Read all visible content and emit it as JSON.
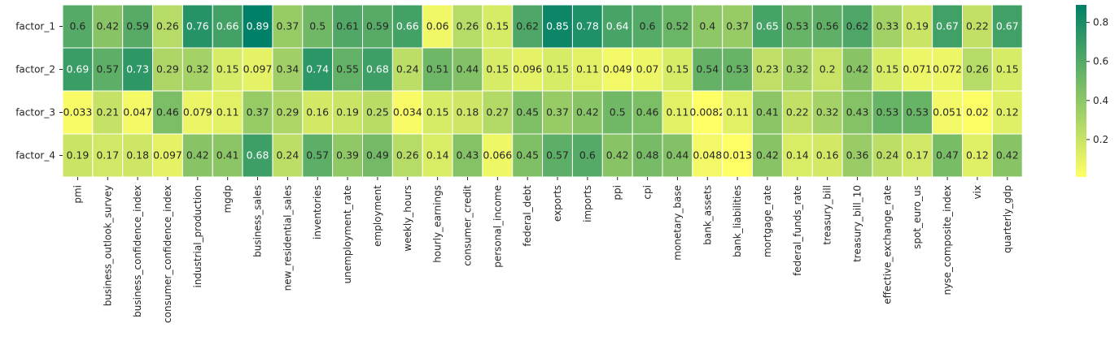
{
  "chart_data": {
    "type": "heatmap",
    "rows": [
      "factor_1",
      "factor_2",
      "factor_3",
      "factor_4"
    ],
    "columns": [
      "pmi",
      "business_outlook_survey",
      "business_confidence_index",
      "consumer_confidence_index",
      "industrial_production",
      "mgdp",
      "business_sales",
      "new_residential_sales",
      "inventories",
      "unemployment_rate",
      "employment",
      "weekly_hours",
      "hourly_earnings",
      "consumer_credit",
      "personal_income",
      "federal_debt",
      "exports",
      "imports",
      "ppi",
      "cpi",
      "monetary_base",
      "bank_assets",
      "bank_liabilities",
      "mortgage_rate",
      "federal_funds_rate",
      "treasury_bill",
      "treasury_bill_10",
      "effective_exchange_rate",
      "spot_euro_us",
      "nyse_composite_index",
      "vix",
      "quarterly_gdp"
    ],
    "values": [
      [
        0.6,
        0.42,
        0.59,
        0.26,
        0.76,
        0.66,
        0.89,
        0.37,
        0.5,
        0.61,
        0.59,
        0.66,
        0.06,
        0.26,
        0.15,
        0.62,
        0.85,
        0.78,
        0.64,
        0.6,
        0.52,
        0.4,
        0.37,
        0.65,
        0.53,
        0.56,
        0.62,
        0.33,
        0.19,
        0.67,
        0.22,
        0.67
      ],
      [
        0.69,
        0.57,
        0.73,
        0.29,
        0.32,
        0.15,
        0.097,
        0.34,
        0.74,
        0.55,
        0.68,
        0.24,
        0.51,
        0.44,
        0.15,
        0.096,
        0.15,
        0.11,
        0.049,
        0.07,
        0.15,
        0.54,
        0.53,
        0.23,
        0.32,
        0.2,
        0.42,
        0.15,
        0.071,
        0.072,
        0.26,
        0.15
      ],
      [
        0.033,
        0.21,
        0.047,
        0.46,
        0.079,
        0.11,
        0.37,
        0.29,
        0.16,
        0.19,
        0.25,
        0.034,
        0.15,
        0.18,
        0.27,
        0.45,
        0.37,
        0.42,
        0.5,
        0.46,
        0.11,
        0.0082,
        0.11,
        0.41,
        0.22,
        0.32,
        0.43,
        0.53,
        0.53,
        0.051,
        0.02,
        0.12
      ],
      [
        0.19,
        0.17,
        0.18,
        0.097,
        0.42,
        0.41,
        0.68,
        0.24,
        0.57,
        0.39,
        0.49,
        0.26,
        0.14,
        0.43,
        0.066,
        0.45,
        0.57,
        0.6,
        0.42,
        0.48,
        0.44,
        0.048,
        0.013,
        0.42,
        0.14,
        0.16,
        0.36,
        0.24,
        0.17,
        0.47,
        0.12,
        0.42
      ]
    ],
    "value_range": [
      0.0082,
      0.89
    ],
    "colormap": "summer_r",
    "colorbar": {
      "ticks": [
        0.2,
        0.4,
        0.6,
        0.8
      ],
      "tick_labels": [
        "0.2",
        "0.4",
        "0.6",
        "0.8"
      ]
    },
    "annotated": true,
    "title": "",
    "xlabel": "",
    "ylabel": ""
  }
}
